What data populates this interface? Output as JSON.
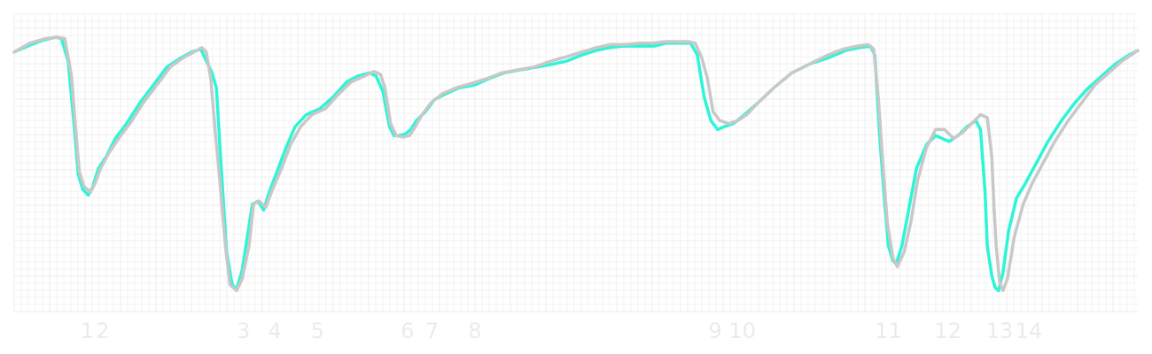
{
  "chart_data": {
    "type": "line",
    "title": "",
    "xlabel": "",
    "ylabel": "",
    "grid": true,
    "legend": "none",
    "xlim": [
      0,
      1000
    ],
    "ylim": [
      0,
      100
    ],
    "x_tick_labels": [
      {
        "label": "1",
        "x": 65
      },
      {
        "label": "2",
        "x": 79
      },
      {
        "label": "3",
        "x": 204
      },
      {
        "label": "4",
        "x": 232
      },
      {
        "label": "5",
        "x": 270
      },
      {
        "label": "6",
        "x": 350
      },
      {
        "label": "7",
        "x": 372
      },
      {
        "label": "8",
        "x": 410
      },
      {
        "label": "9",
        "x": 624
      },
      {
        "label": "10",
        "x": 648
      },
      {
        "label": "11",
        "x": 778
      },
      {
        "label": "12",
        "x": 831
      },
      {
        "label": "13",
        "x": 877
      },
      {
        "label": "14",
        "x": 903
      }
    ],
    "series": [
      {
        "color": "#2cf5d8",
        "points": [
          [
            0,
            87
          ],
          [
            12,
            89
          ],
          [
            26,
            91
          ],
          [
            37,
            92
          ],
          [
            42,
            91.5
          ],
          [
            48,
            84
          ],
          [
            53,
            64
          ],
          [
            57,
            46
          ],
          [
            61,
            41
          ],
          [
            66,
            39
          ],
          [
            70,
            42
          ],
          [
            75,
            48
          ],
          [
            82,
            52
          ],
          [
            90,
            58
          ],
          [
            100,
            63
          ],
          [
            112,
            70
          ],
          [
            124,
            76
          ],
          [
            136,
            82
          ],
          [
            148,
            85
          ],
          [
            158,
            87
          ],
          [
            166,
            88
          ],
          [
            176,
            80
          ],
          [
            180,
            75
          ],
          [
            184,
            50
          ],
          [
            189,
            20
          ],
          [
            194,
            9
          ],
          [
            198,
            7.5
          ],
          [
            203,
            14
          ],
          [
            207,
            24
          ],
          [
            212,
            36
          ],
          [
            217,
            37
          ],
          [
            222,
            34
          ],
          [
            227,
            40
          ],
          [
            234,
            47
          ],
          [
            242,
            55
          ],
          [
            250,
            62
          ],
          [
            260,
            66
          ],
          [
            272,
            68
          ],
          [
            284,
            72
          ],
          [
            296,
            77
          ],
          [
            306,
            79
          ],
          [
            316,
            80
          ],
          [
            322,
            79
          ],
          [
            328,
            74
          ],
          [
            334,
            62
          ],
          [
            338,
            59
          ],
          [
            342,
            59
          ],
          [
            348,
            59.5
          ],
          [
            353,
            61
          ],
          [
            358,
            64
          ],
          [
            366,
            67
          ],
          [
            374,
            71
          ],
          [
            384,
            73
          ],
          [
            396,
            75
          ],
          [
            410,
            76
          ],
          [
            422,
            78
          ],
          [
            436,
            80
          ],
          [
            450,
            81
          ],
          [
            466,
            82
          ],
          [
            480,
            83
          ],
          [
            492,
            84
          ],
          [
            505,
            86
          ],
          [
            518,
            87.5
          ],
          [
            530,
            88.5
          ],
          [
            542,
            89
          ],
          [
            556,
            89
          ],
          [
            570,
            89
          ],
          [
            580,
            90
          ],
          [
            590,
            90
          ],
          [
            602,
            90
          ],
          [
            608,
            86
          ],
          [
            614,
            72
          ],
          [
            620,
            64
          ],
          [
            626,
            61
          ],
          [
            632,
            62
          ],
          [
            640,
            63
          ],
          [
            650,
            66
          ],
          [
            662,
            70
          ],
          [
            676,
            75
          ],
          [
            692,
            80
          ],
          [
            708,
            83
          ],
          [
            724,
            85
          ],
          [
            740,
            87.5
          ],
          [
            752,
            88.5
          ],
          [
            762,
            89
          ],
          [
            766,
            86
          ],
          [
            770,
            60
          ],
          [
            774,
            40
          ],
          [
            778,
            22
          ],
          [
            782,
            17
          ],
          [
            785,
            16
          ],
          [
            790,
            22
          ],
          [
            795,
            32
          ],
          [
            803,
            48
          ],
          [
            812,
            56
          ],
          [
            820,
            59
          ],
          [
            826,
            58
          ],
          [
            832,
            57
          ],
          [
            840,
            59
          ],
          [
            848,
            62
          ],
          [
            856,
            64
          ],
          [
            860,
            61
          ],
          [
            864,
            40
          ],
          [
            866,
            22
          ],
          [
            870,
            12
          ],
          [
            873,
            8
          ],
          [
            876,
            7
          ],
          [
            880,
            13
          ],
          [
            885,
            27
          ],
          [
            892,
            38
          ],
          [
            900,
            43
          ],
          [
            910,
            50
          ],
          [
            920,
            57
          ],
          [
            932,
            64
          ],
          [
            944,
            70
          ],
          [
            956,
            75
          ],
          [
            968,
            79
          ],
          [
            980,
            83
          ],
          [
            992,
            86
          ],
          [
            1000,
            87.5
          ]
        ]
      },
      {
        "color": "#c8c8c8",
        "points": [
          [
            0,
            87
          ],
          [
            14,
            90
          ],
          [
            28,
            91.5
          ],
          [
            38,
            92
          ],
          [
            45,
            91.5
          ],
          [
            51,
            79
          ],
          [
            55,
            60
          ],
          [
            58,
            47
          ],
          [
            62,
            42
          ],
          [
            68,
            40
          ],
          [
            72,
            43
          ],
          [
            77,
            48
          ],
          [
            84,
            53
          ],
          [
            93,
            58
          ],
          [
            103,
            63
          ],
          [
            115,
            70
          ],
          [
            127,
            76
          ],
          [
            139,
            82
          ],
          [
            150,
            85
          ],
          [
            160,
            87
          ],
          [
            167,
            88.5
          ],
          [
            171,
            87
          ],
          [
            175,
            78
          ],
          [
            179,
            60
          ],
          [
            183,
            44
          ],
          [
            188,
            22
          ],
          [
            192,
            9
          ],
          [
            198,
            7
          ],
          [
            203,
            11
          ],
          [
            209,
            22
          ],
          [
            213,
            36
          ],
          [
            218,
            37
          ],
          [
            224,
            35
          ],
          [
            230,
            41
          ],
          [
            238,
            48
          ],
          [
            246,
            56
          ],
          [
            255,
            62
          ],
          [
            265,
            66
          ],
          [
            277,
            68
          ],
          [
            289,
            73
          ],
          [
            300,
            77
          ],
          [
            312,
            79
          ],
          [
            320,
            80.5
          ],
          [
            326,
            79.5
          ],
          [
            330,
            75
          ],
          [
            335,
            63
          ],
          [
            340,
            59
          ],
          [
            346,
            58.5
          ],
          [
            352,
            59
          ],
          [
            357,
            62
          ],
          [
            363,
            66
          ],
          [
            371,
            70
          ],
          [
            381,
            73
          ],
          [
            393,
            75
          ],
          [
            407,
            76.5
          ],
          [
            420,
            78
          ],
          [
            434,
            80
          ],
          [
            448,
            81
          ],
          [
            463,
            82
          ],
          [
            478,
            84
          ],
          [
            492,
            85.5
          ],
          [
            505,
            87
          ],
          [
            518,
            88.5
          ],
          [
            531,
            89.5
          ],
          [
            544,
            89.5
          ],
          [
            556,
            90
          ],
          [
            568,
            90
          ],
          [
            580,
            90.5
          ],
          [
            590,
            90.5
          ],
          [
            600,
            90.5
          ],
          [
            606,
            90
          ],
          [
            612,
            85
          ],
          [
            617,
            78
          ],
          [
            622,
            67
          ],
          [
            628,
            64
          ],
          [
            636,
            63
          ],
          [
            644,
            64
          ],
          [
            652,
            66
          ],
          [
            662,
            70
          ],
          [
            676,
            75
          ],
          [
            692,
            80
          ],
          [
            708,
            83
          ],
          [
            724,
            86
          ],
          [
            738,
            88
          ],
          [
            750,
            89
          ],
          [
            760,
            89.5
          ],
          [
            765,
            88
          ],
          [
            769,
            72
          ],
          [
            773,
            50
          ],
          [
            777,
            30
          ],
          [
            782,
            18
          ],
          [
            786,
            15
          ],
          [
            792,
            20
          ],
          [
            798,
            30
          ],
          [
            804,
            44
          ],
          [
            812,
            55
          ],
          [
            820,
            61
          ],
          [
            828,
            61
          ],
          [
            836,
            58
          ],
          [
            844,
            60
          ],
          [
            852,
            63
          ],
          [
            860,
            66
          ],
          [
            866,
            65
          ],
          [
            870,
            52
          ],
          [
            872,
            35
          ],
          [
            874,
            22
          ],
          [
            877,
            10
          ],
          [
            880,
            7
          ],
          [
            884,
            11
          ],
          [
            890,
            25
          ],
          [
            898,
            36
          ],
          [
            906,
            43
          ],
          [
            916,
            50
          ],
          [
            926,
            57
          ],
          [
            938,
            64
          ],
          [
            950,
            70
          ],
          [
            962,
            76
          ],
          [
            974,
            80
          ],
          [
            986,
            84
          ],
          [
            996,
            86.5
          ],
          [
            1000,
            87.5
          ]
        ]
      }
    ]
  }
}
